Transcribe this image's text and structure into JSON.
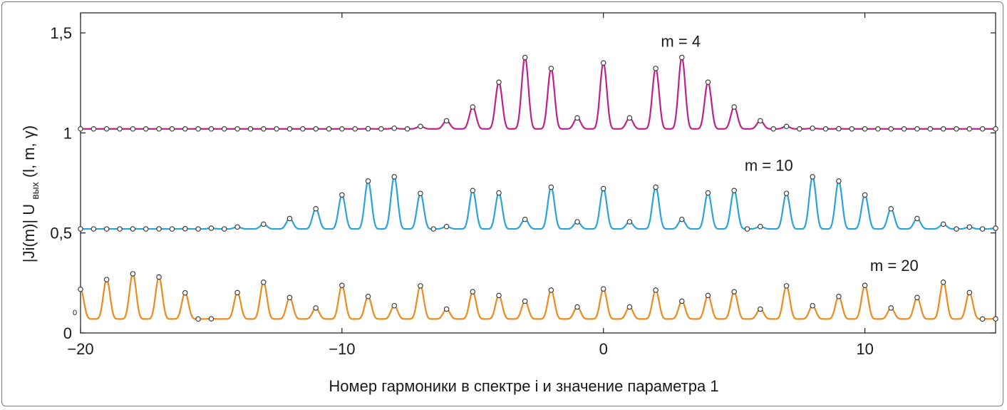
{
  "chart_data": {
    "type": "line",
    "title": "",
    "xlabel": "Номер гармоники в спектре i  и значение параметра 1",
    "ylabel_parts": [
      "|Ji(m)| U",
      "вых",
      "(l, m, γ)"
    ],
    "xlim": [
      -20,
      15
    ],
    "ylim": [
      0,
      1.6
    ],
    "x_ticks": [
      {
        "value": -20,
        "label": "−20"
      },
      {
        "value": -10,
        "label": "−10"
      },
      {
        "value": 0,
        "label": "0"
      },
      {
        "value": 10,
        "label": "10"
      }
    ],
    "y_ticks": [
      {
        "value": 0,
        "label": "0"
      },
      {
        "value": 0.5,
        "label": "0,5"
      },
      {
        "value": 1,
        "label": "1"
      },
      {
        "value": 1.5,
        "label": "1,5"
      }
    ],
    "baseline_marker_label": "0",
    "grid": false,
    "series": [
      {
        "name": "m = 4",
        "color": "#c0208a",
        "offset": 1.0,
        "m": 4,
        "label_at": {
          "x": 2.2,
          "y": 1.43
        }
      },
      {
        "name": "m = 10",
        "color": "#2aa3d8",
        "offset": 0.5,
        "m": 10,
        "label_at": {
          "x": 5.4,
          "y": 0.81
        }
      },
      {
        "name": "m = 20",
        "color": "#ec8a1e",
        "offset": 0.0,
        "m": 20,
        "label_at": {
          "x": 10.2,
          "y": 0.31
        }
      }
    ]
  }
}
